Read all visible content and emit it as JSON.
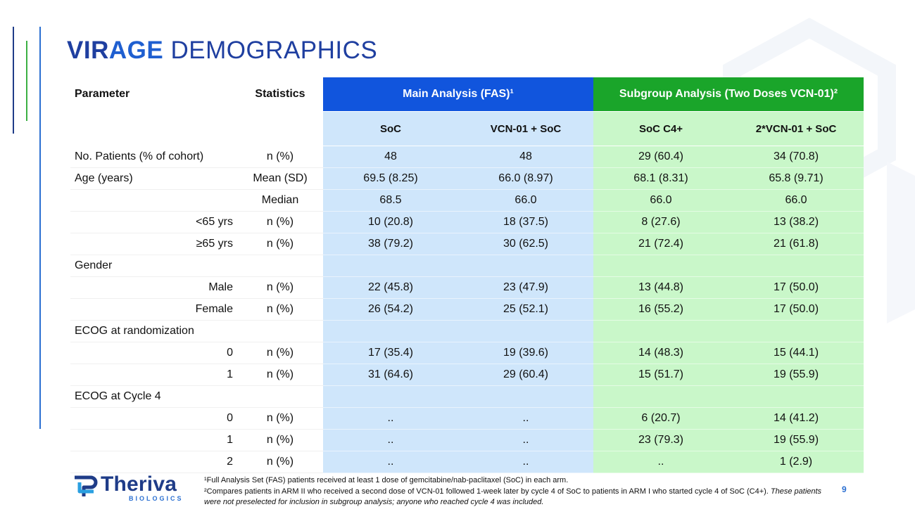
{
  "title": {
    "part1": "VIR",
    "part2": "AGE",
    "part3": " DEMOGRAPHICS"
  },
  "table": {
    "header": {
      "parameter": "Parameter",
      "statistics": "Statistics",
      "main_group": "Main Analysis (FAS)¹",
      "sub_group": "Subgroup Analysis (Two Doses VCN-01)²"
    },
    "columns": [
      "SoC",
      "VCN-01 + SoC",
      "SoC C4+",
      "2*VCN-01 + SoC"
    ],
    "rows": [
      {
        "param": "No. Patients (% of cohort)",
        "indent": false,
        "stat": "n (%)",
        "values": [
          "48",
          "48",
          "29 (60.4)",
          "34 (70.8)"
        ]
      },
      {
        "param": "Age (years)",
        "indent": false,
        "stat": "Mean (SD)",
        "values": [
          "69.5 (8.25)",
          "66.0 (8.97)",
          "68.1 (8.31)",
          "65.8 (9.71)"
        ]
      },
      {
        "param": "",
        "indent": false,
        "stat": "Median",
        "values": [
          "68.5",
          "66.0",
          "66.0",
          "66.0"
        ]
      },
      {
        "param": "<65 yrs",
        "indent": true,
        "stat": "n (%)",
        "values": [
          "10 (20.8)",
          "18 (37.5)",
          "8 (27.6)",
          "13 (38.2)"
        ]
      },
      {
        "param": "≥65 yrs",
        "indent": true,
        "stat": "n (%)",
        "values": [
          "38 (79.2)",
          "30 (62.5)",
          "21 (72.4)",
          "21 (61.8)"
        ]
      },
      {
        "param": "Gender",
        "indent": false,
        "stat": "",
        "values": [
          "",
          "",
          "",
          ""
        ]
      },
      {
        "param": "Male",
        "indent": true,
        "stat": "n (%)",
        "values": [
          "22 (45.8)",
          "23 (47.9)",
          "13 (44.8)",
          "17 (50.0)"
        ]
      },
      {
        "param": "Female",
        "indent": true,
        "stat": "n (%)",
        "values": [
          "26 (54.2)",
          "25 (52.1)",
          "16 (55.2)",
          "17 (50.0)"
        ]
      },
      {
        "param": "ECOG at randomization",
        "indent": false,
        "stat": "",
        "values": [
          "",
          "",
          "",
          ""
        ]
      },
      {
        "param": "0",
        "indent": true,
        "stat": "n (%)",
        "values": [
          "17 (35.4)",
          "19 (39.6)",
          "14 (48.3)",
          "15 (44.1)"
        ]
      },
      {
        "param": "1",
        "indent": true,
        "stat": "n (%)",
        "values": [
          "31 (64.6)",
          "29 (60.4)",
          "15 (51.7)",
          "19 (55.9)"
        ]
      },
      {
        "param": "ECOG at Cycle 4",
        "indent": false,
        "stat": "",
        "values": [
          "",
          "",
          "",
          ""
        ]
      },
      {
        "param": "0",
        "indent": true,
        "stat": "n (%)",
        "values": [
          "..",
          "..",
          "6 (20.7)",
          "14 (41.2)"
        ]
      },
      {
        "param": "1",
        "indent": true,
        "stat": "n (%)",
        "values": [
          "..",
          "..",
          "23 (79.3)",
          "19 (55.9)"
        ]
      },
      {
        "param": "2",
        "indent": true,
        "stat": "n (%)",
        "values": [
          "..",
          "..",
          "..",
          "1 (2.9)"
        ]
      }
    ]
  },
  "footnotes": {
    "note1": "¹Full Analysis Set (FAS) patients received at least 1 dose of gemcitabine/nab-paclitaxel (SoC) in each arm.",
    "note2": "²Compares patients in ARM II who received a second dose of VCN-01 followed 1-week later by cycle 4 of SoC to patients in ARM I who started cycle 4 of SoC (C4+). ",
    "note2_italic": "These patients were not preselected for inclusion in subgroup analysis; anyone who reached cycle 4 was included."
  },
  "logo": {
    "name": "Theriva",
    "subtitle": "BIOLOGICS"
  },
  "page_number": "9",
  "colors": {
    "main_header": "#1155dd",
    "sub_header": "#1aa52a",
    "main_bg": "#cfe6fb",
    "sub_bg": "#c9f7c9",
    "title": "#1f3fa0"
  }
}
